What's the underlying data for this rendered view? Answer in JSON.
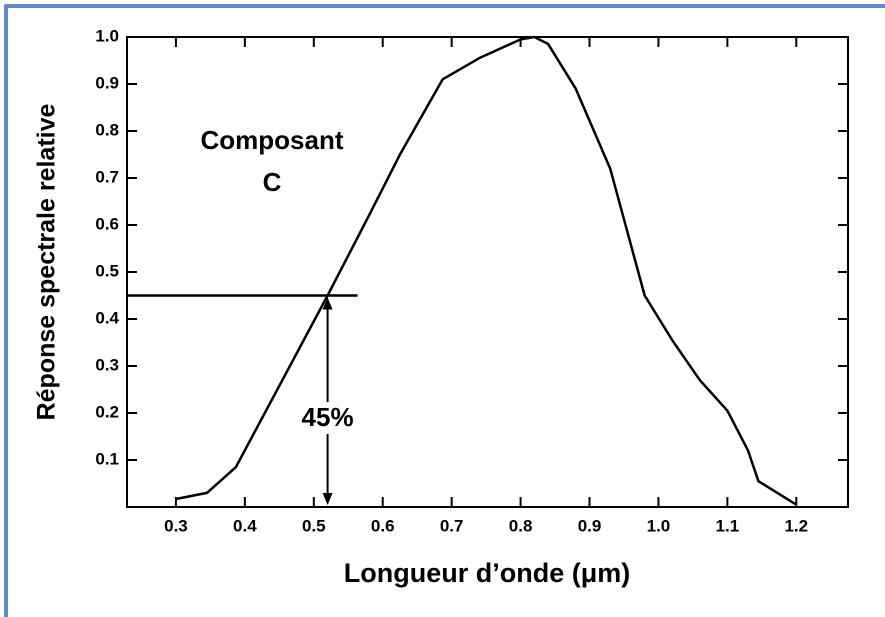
{
  "chart_data": {
    "type": "line",
    "title_lines": [
      "Composant",
      "C"
    ],
    "xlabel": "Longueur d’onde (μm)",
    "ylabel": "Réponse spectrale relative",
    "series": [
      {
        "color": "#000000",
        "x": [
          0.3,
          0.345,
          0.387,
          0.52,
          0.58,
          0.625,
          0.687,
          0.74,
          0.8,
          0.82,
          0.84,
          0.88,
          0.93,
          0.98,
          1.02,
          1.06,
          1.1,
          1.13,
          1.145,
          1.2
        ],
        "values": [
          0.017,
          0.03,
          0.085,
          0.45,
          0.62,
          0.75,
          0.91,
          0.955,
          0.995,
          1.0,
          0.985,
          0.89,
          0.72,
          0.45,
          0.355,
          0.27,
          0.205,
          0.12,
          0.055,
          0.005
        ]
      }
    ],
    "annotation": {
      "x": 0.52,
      "y": 0.45,
      "label": "45%"
    },
    "xlim": [
      0.229,
      1.275
    ],
    "ylim": [
      0,
      1
    ],
    "xticks": [
      0.3,
      0.4,
      0.5,
      0.6,
      0.7,
      0.8,
      0.9,
      {
        "value": 1,
        "label": "1.0"
      },
      1.1,
      1.2
    ],
    "yticks": [
      0.1,
      0.2,
      0.3,
      0.4,
      0.5,
      0.6,
      0.7,
      0.8,
      0.9,
      {
        "value": 1,
        "label": "1.0"
      }
    ]
  }
}
